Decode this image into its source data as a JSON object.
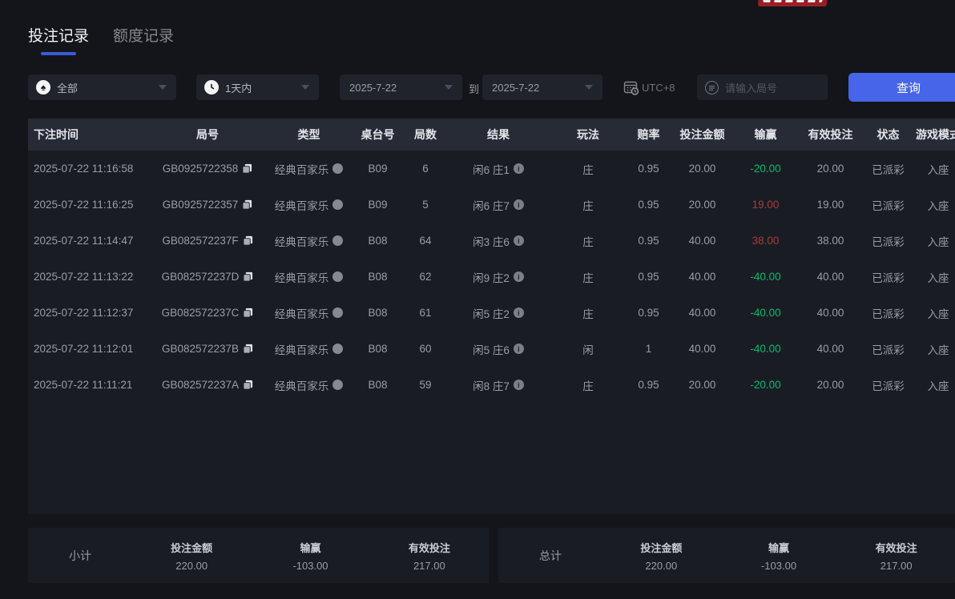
{
  "tabs": [
    {
      "label": "投注记录",
      "active": true
    },
    {
      "label": "额度记录",
      "active": false
    }
  ],
  "filters": {
    "game_type": "全部",
    "time_range": "1天内",
    "date_from": "2025-7-22",
    "to_label": "到",
    "date_to": "2025-7-22",
    "timezone": "UTC+8",
    "search_placeholder": "请输入局号",
    "query_label": "查询"
  },
  "table": {
    "columns": [
      "下注时间",
      "局号",
      "类型",
      "桌台号",
      "局数",
      "结果",
      "玩法",
      "赔率",
      "投注金额",
      "输赢",
      "有效投注",
      "状态",
      "游戏模式"
    ],
    "rows": [
      {
        "time": "2025-07-22 11:16:58",
        "round_id": "GB0925722358",
        "type": "经典百家乐",
        "table_no": "B09",
        "round": "6",
        "result": "闲6 庄1",
        "play": "庄",
        "odds": "0.95",
        "bet": "20.00",
        "winloss": "-20.00",
        "winloss_color": "green",
        "valid": "20.00",
        "status": "已派彩",
        "mode": "入座"
      },
      {
        "time": "2025-07-22 11:16:25",
        "round_id": "GB0925722357",
        "type": "经典百家乐",
        "table_no": "B09",
        "round": "5",
        "result": "闲6 庄7",
        "play": "庄",
        "odds": "0.95",
        "bet": "20.00",
        "winloss": "19.00",
        "winloss_color": "red",
        "valid": "19.00",
        "status": "已派彩",
        "mode": "入座"
      },
      {
        "time": "2025-07-22 11:14:47",
        "round_id": "GB082572237F",
        "type": "经典百家乐",
        "table_no": "B08",
        "round": "64",
        "result": "闲3 庄6",
        "play": "庄",
        "odds": "0.95",
        "bet": "40.00",
        "winloss": "38.00",
        "winloss_color": "red",
        "valid": "38.00",
        "status": "已派彩",
        "mode": "入座"
      },
      {
        "time": "2025-07-22 11:13:22",
        "round_id": "GB082572237D",
        "type": "经典百家乐",
        "table_no": "B08",
        "round": "62",
        "result": "闲9 庄2",
        "play": "庄",
        "odds": "0.95",
        "bet": "40.00",
        "winloss": "-40.00",
        "winloss_color": "green",
        "valid": "40.00",
        "status": "已派彩",
        "mode": "入座"
      },
      {
        "time": "2025-07-22 11:12:37",
        "round_id": "GB082572237C",
        "type": "经典百家乐",
        "table_no": "B08",
        "round": "61",
        "result": "闲5 庄2",
        "play": "庄",
        "odds": "0.95",
        "bet": "40.00",
        "winloss": "-40.00",
        "winloss_color": "green",
        "valid": "40.00",
        "status": "已派彩",
        "mode": "入座"
      },
      {
        "time": "2025-07-22 11:12:01",
        "round_id": "GB082572237B",
        "type": "经典百家乐",
        "table_no": "B08",
        "round": "60",
        "result": "闲5 庄6",
        "play": "闲",
        "odds": "1",
        "bet": "40.00",
        "winloss": "-40.00",
        "winloss_color": "green",
        "valid": "40.00",
        "status": "已派彩",
        "mode": "入座"
      },
      {
        "time": "2025-07-22 11:11:21",
        "round_id": "GB082572237A",
        "type": "经典百家乐",
        "table_no": "B08",
        "round": "59",
        "result": "闲8 庄7",
        "play": "庄",
        "odds": "0.95",
        "bet": "20.00",
        "winloss": "-20.00",
        "winloss_color": "green",
        "valid": "20.00",
        "status": "已派彩",
        "mode": "入座"
      }
    ]
  },
  "summary": {
    "bars": [
      {
        "name": "subtotal",
        "label": "小计",
        "items": [
          {
            "label": "投注金额",
            "value": "220.00",
            "color": "default"
          },
          {
            "label": "输赢",
            "value": "-103.00",
            "color": "green"
          },
          {
            "label": "有效投注",
            "value": "217.00",
            "color": "default"
          }
        ]
      },
      {
        "name": "total",
        "label": "总计",
        "items": [
          {
            "label": "投注金额",
            "value": "220.00",
            "color": "default"
          },
          {
            "label": "输赢",
            "value": "-103.00",
            "color": "green"
          },
          {
            "label": "有效投注",
            "value": "217.00",
            "color": "default"
          }
        ]
      }
    ]
  },
  "colors": {
    "accent_blue": "#4765e8",
    "tab_underline": "#3a5ad9",
    "win_red": "#a63c3c",
    "loss_green": "#00bd70",
    "table_bg": "#1a1c23",
    "header_bg": "#272b36",
    "page_bg": "#14151a"
  }
}
